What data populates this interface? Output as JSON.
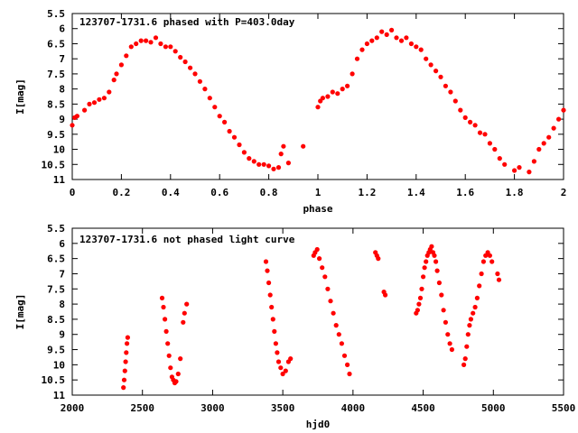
{
  "colors": {
    "points": "#ff0000",
    "axes": "#000000",
    "background": "#ffffff"
  },
  "chart_data": [
    {
      "type": "scatter",
      "title": "123707-1731.6 phased with P=403.0day",
      "xlabel": "phase",
      "ylabel": "I[mag]",
      "xlim": [
        0,
        2
      ],
      "ylim": [
        11,
        5.5
      ],
      "y_inverted": true,
      "grid": false,
      "x_ticks": [
        "0",
        "0.2",
        "0.4",
        "0.6",
        "0.8",
        "1",
        "1.2",
        "1.4",
        "1.6",
        "1.8",
        "2"
      ],
      "y_ticks": [
        "5.5",
        "6",
        "6.5",
        "7",
        "7.5",
        "8",
        "8.5",
        "9",
        "9.5",
        "10",
        "10.5",
        "11"
      ],
      "x_tick_values": [
        0,
        0.2,
        0.4,
        0.6,
        0.8,
        1.0,
        1.2,
        1.4,
        1.6,
        1.8,
        2.0
      ],
      "y_tick_values": [
        5.5,
        6,
        6.5,
        7,
        7.5,
        8,
        8.5,
        9,
        9.5,
        10,
        10.5,
        11
      ],
      "points": [
        [
          0.0,
          9.2
        ],
        [
          0.01,
          8.95
        ],
        [
          0.02,
          8.9
        ],
        [
          0.05,
          8.7
        ],
        [
          0.07,
          8.5
        ],
        [
          0.09,
          8.45
        ],
        [
          0.11,
          8.35
        ],
        [
          0.13,
          8.3
        ],
        [
          0.15,
          8.1
        ],
        [
          0.17,
          7.7
        ],
        [
          0.18,
          7.5
        ],
        [
          0.2,
          7.2
        ],
        [
          0.22,
          6.9
        ],
        [
          0.24,
          6.6
        ],
        [
          0.26,
          6.5
        ],
        [
          0.28,
          6.4
        ],
        [
          0.3,
          6.4
        ],
        [
          0.32,
          6.45
        ],
        [
          0.34,
          6.3
        ],
        [
          0.36,
          6.5
        ],
        [
          0.38,
          6.6
        ],
        [
          0.4,
          6.6
        ],
        [
          0.42,
          6.75
        ],
        [
          0.44,
          6.95
        ],
        [
          0.46,
          7.1
        ],
        [
          0.48,
          7.3
        ],
        [
          0.5,
          7.5
        ],
        [
          0.52,
          7.75
        ],
        [
          0.54,
          8.0
        ],
        [
          0.56,
          8.3
        ],
        [
          0.58,
          8.6
        ],
        [
          0.6,
          8.9
        ],
        [
          0.62,
          9.1
        ],
        [
          0.64,
          9.4
        ],
        [
          0.66,
          9.6
        ],
        [
          0.68,
          9.85
        ],
        [
          0.7,
          10.1
        ],
        [
          0.72,
          10.3
        ],
        [
          0.74,
          10.4
        ],
        [
          0.76,
          10.5
        ],
        [
          0.78,
          10.5
        ],
        [
          0.8,
          10.55
        ],
        [
          0.82,
          10.65
        ],
        [
          0.84,
          10.6
        ],
        [
          0.85,
          10.15
        ],
        [
          0.86,
          9.9
        ],
        [
          0.88,
          10.45
        ],
        [
          0.94,
          9.9
        ],
        [
          1.0,
          8.6
        ],
        [
          1.01,
          8.4
        ],
        [
          1.02,
          8.3
        ],
        [
          1.04,
          8.25
        ],
        [
          1.06,
          8.1
        ],
        [
          1.08,
          8.15
        ],
        [
          1.1,
          8.0
        ],
        [
          1.12,
          7.9
        ],
        [
          1.14,
          7.5
        ],
        [
          1.16,
          7.0
        ],
        [
          1.18,
          6.7
        ],
        [
          1.2,
          6.5
        ],
        [
          1.22,
          6.4
        ],
        [
          1.24,
          6.3
        ],
        [
          1.26,
          6.1
        ],
        [
          1.28,
          6.2
        ],
        [
          1.3,
          6.05
        ],
        [
          1.32,
          6.3
        ],
        [
          1.34,
          6.4
        ],
        [
          1.36,
          6.3
        ],
        [
          1.38,
          6.5
        ],
        [
          1.4,
          6.6
        ],
        [
          1.42,
          6.7
        ],
        [
          1.44,
          7.0
        ],
        [
          1.46,
          7.2
        ],
        [
          1.48,
          7.4
        ],
        [
          1.5,
          7.6
        ],
        [
          1.52,
          7.9
        ],
        [
          1.54,
          8.1
        ],
        [
          1.56,
          8.4
        ],
        [
          1.58,
          8.7
        ],
        [
          1.6,
          8.95
        ],
        [
          1.62,
          9.1
        ],
        [
          1.64,
          9.2
        ],
        [
          1.66,
          9.45
        ],
        [
          1.68,
          9.5
        ],
        [
          1.7,
          9.8
        ],
        [
          1.72,
          10.0
        ],
        [
          1.74,
          10.3
        ],
        [
          1.76,
          10.5
        ],
        [
          1.8,
          10.7
        ],
        [
          1.82,
          10.6
        ],
        [
          1.86,
          10.75
        ],
        [
          1.88,
          10.4
        ],
        [
          1.9,
          10.0
        ],
        [
          1.92,
          9.8
        ],
        [
          1.94,
          9.6
        ],
        [
          1.96,
          9.3
        ],
        [
          1.98,
          9.0
        ],
        [
          2.0,
          8.7
        ]
      ]
    },
    {
      "type": "scatter",
      "title": "123707-1731.6 not phased light curve",
      "xlabel": "hjd0",
      "ylabel": "I[mag]",
      "xlim": [
        2000,
        5500
      ],
      "ylim": [
        11,
        5.5
      ],
      "y_inverted": true,
      "grid": false,
      "x_ticks": [
        "2000",
        "2500",
        "3000",
        "3500",
        "4000",
        "4500",
        "5000",
        "5500"
      ],
      "y_ticks": [
        "5.5",
        "6",
        "6.5",
        "7",
        "7.5",
        "8",
        "8.5",
        "9",
        "9.5",
        "10",
        "10.5",
        "11"
      ],
      "x_tick_values": [
        2000,
        2500,
        3000,
        3500,
        4000,
        4500,
        5000,
        5500
      ],
      "y_tick_values": [
        5.5,
        6,
        6.5,
        7,
        7.5,
        8,
        8.5,
        9,
        9.5,
        10,
        10.5,
        11
      ],
      "points": [
        [
          2365,
          10.75
        ],
        [
          2370,
          10.5
        ],
        [
          2375,
          10.2
        ],
        [
          2380,
          9.9
        ],
        [
          2385,
          9.6
        ],
        [
          2390,
          9.3
        ],
        [
          2395,
          9.1
        ],
        [
          2640,
          7.8
        ],
        [
          2650,
          8.1
        ],
        [
          2660,
          8.5
        ],
        [
          2670,
          8.9
        ],
        [
          2680,
          9.3
        ],
        [
          2690,
          9.7
        ],
        [
          2700,
          10.1
        ],
        [
          2710,
          10.4
        ],
        [
          2720,
          10.5
        ],
        [
          2730,
          10.6
        ],
        [
          2740,
          10.55
        ],
        [
          2755,
          10.3
        ],
        [
          2770,
          9.8
        ],
        [
          2790,
          8.6
        ],
        [
          2800,
          8.3
        ],
        [
          2815,
          8.0
        ],
        [
          3380,
          6.6
        ],
        [
          3390,
          6.9
        ],
        [
          3400,
          7.3
        ],
        [
          3410,
          7.7
        ],
        [
          3420,
          8.1
        ],
        [
          3430,
          8.5
        ],
        [
          3440,
          8.9
        ],
        [
          3450,
          9.3
        ],
        [
          3460,
          9.6
        ],
        [
          3470,
          9.9
        ],
        [
          3485,
          10.1
        ],
        [
          3500,
          10.3
        ],
        [
          3520,
          10.2
        ],
        [
          3540,
          9.9
        ],
        [
          3555,
          9.8
        ],
        [
          3720,
          6.4
        ],
        [
          3730,
          6.3
        ],
        [
          3745,
          6.2
        ],
        [
          3760,
          6.5
        ],
        [
          3780,
          6.8
        ],
        [
          3800,
          7.1
        ],
        [
          3820,
          7.5
        ],
        [
          3840,
          7.9
        ],
        [
          3860,
          8.3
        ],
        [
          3880,
          8.7
        ],
        [
          3900,
          9.0
        ],
        [
          3920,
          9.3
        ],
        [
          3940,
          9.7
        ],
        [
          3960,
          10.0
        ],
        [
          3975,
          10.3
        ],
        [
          4160,
          6.3
        ],
        [
          4170,
          6.4
        ],
        [
          4180,
          6.5
        ],
        [
          4220,
          7.6
        ],
        [
          4230,
          7.7
        ],
        [
          4450,
          8.3
        ],
        [
          4460,
          8.2
        ],
        [
          4470,
          8.0
        ],
        [
          4480,
          7.8
        ],
        [
          4490,
          7.5
        ],
        [
          4500,
          7.1
        ],
        [
          4510,
          6.8
        ],
        [
          4520,
          6.6
        ],
        [
          4530,
          6.4
        ],
        [
          4540,
          6.3
        ],
        [
          4550,
          6.2
        ],
        [
          4560,
          6.1
        ],
        [
          4570,
          6.3
        ],
        [
          4580,
          6.4
        ],
        [
          4590,
          6.6
        ],
        [
          4600,
          6.9
        ],
        [
          4615,
          7.3
        ],
        [
          4630,
          7.7
        ],
        [
          4645,
          8.2
        ],
        [
          4660,
          8.6
        ],
        [
          4675,
          9.0
        ],
        [
          4690,
          9.3
        ],
        [
          4705,
          9.5
        ],
        [
          4790,
          10.0
        ],
        [
          4800,
          9.8
        ],
        [
          4810,
          9.4
        ],
        [
          4820,
          9.0
        ],
        [
          4830,
          8.7
        ],
        [
          4840,
          8.5
        ],
        [
          4855,
          8.3
        ],
        [
          4870,
          8.1
        ],
        [
          4885,
          7.8
        ],
        [
          4900,
          7.4
        ],
        [
          4915,
          7.0
        ],
        [
          4930,
          6.6
        ],
        [
          4945,
          6.4
        ],
        [
          4960,
          6.3
        ],
        [
          4975,
          6.4
        ],
        [
          4990,
          6.6
        ],
        [
          5030,
          7.0
        ],
        [
          5040,
          7.2
        ]
      ]
    }
  ]
}
